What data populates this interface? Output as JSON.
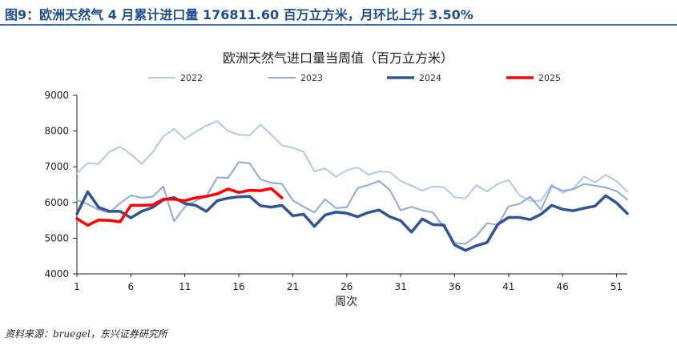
{
  "figure": {
    "title": "图9：欧洲天然气 4 月累计进口量 176811.60 百万立方米，月环比上升 3.50%",
    "source": "资料来源：bruegel，东兴证券研究所"
  },
  "chart_data": {
    "type": "line",
    "title": "欧洲天然气进口量当周值（百万立方米）",
    "xlabel": "周次",
    "ylabel": "",
    "xlim": [
      1,
      52
    ],
    "ylim": [
      4000,
      9000
    ],
    "yticks": [
      4000,
      5000,
      6000,
      7000,
      8000,
      9000
    ],
    "xticks": [
      1,
      6,
      11,
      16,
      21,
      26,
      31,
      36,
      41,
      46,
      51
    ],
    "grid": false,
    "legend_position": "top",
    "series": [
      {
        "name": "2022",
        "color": "#b4c7e7",
        "width": 2,
        "values": [
          6820,
          7100,
          7080,
          7420,
          7560,
          7350,
          7080,
          7400,
          7850,
          8060,
          7780,
          7980,
          8150,
          8280,
          8000,
          7900,
          7880,
          8180,
          7900,
          7600,
          7530,
          7420,
          6870,
          6950,
          6720,
          6900,
          6980,
          6780,
          6870,
          6850,
          6600,
          6470,
          6330,
          6450,
          6430,
          6150,
          6110,
          6480,
          6310,
          6520,
          6630,
          6200,
          6050,
          6050,
          6500,
          6270,
          6390,
          6730,
          6560,
          6770,
          6600,
          6300
        ]
      },
      {
        "name": "2023",
        "color": "#8eaadb",
        "width": 2,
        "values": [
          6070,
          5950,
          5800,
          5720,
          5980,
          6200,
          6130,
          6160,
          6450,
          5470,
          5880,
          6050,
          6170,
          6700,
          6690,
          7130,
          7100,
          6650,
          6550,
          6520,
          6060,
          5880,
          5720,
          6090,
          5840,
          5870,
          6400,
          6490,
          6600,
          6350,
          5780,
          5880,
          5780,
          5720,
          5300,
          4870,
          4840,
          5060,
          5420,
          5370,
          5890,
          5960,
          6160,
          5800,
          6450,
          6330,
          6370,
          6520,
          6470,
          6420,
          6320,
          6080
        ]
      },
      {
        "name": "2024",
        "color": "#2f5597",
        "width": 3.5,
        "values": [
          5680,
          6300,
          5870,
          5750,
          5750,
          5570,
          5750,
          5860,
          6070,
          6140,
          5970,
          5920,
          5750,
          6050,
          6120,
          6160,
          6170,
          5910,
          5870,
          5920,
          5630,
          5670,
          5330,
          5650,
          5730,
          5700,
          5600,
          5720,
          5790,
          5600,
          5490,
          5170,
          5540,
          5380,
          5370,
          4810,
          4660,
          4790,
          4880,
          5390,
          5580,
          5580,
          5520,
          5670,
          5920,
          5810,
          5770,
          5840,
          5900,
          6190,
          5990,
          5690
        ]
      },
      {
        "name": "2025",
        "color": "#ff0000",
        "width": 3.5,
        "values": [
          5550,
          5360,
          5510,
          5500,
          5460,
          5920,
          5920,
          5930,
          6090,
          6090,
          6050,
          6130,
          6170,
          6240,
          6380,
          6280,
          6340,
          6330,
          6390,
          6130
        ]
      }
    ]
  }
}
